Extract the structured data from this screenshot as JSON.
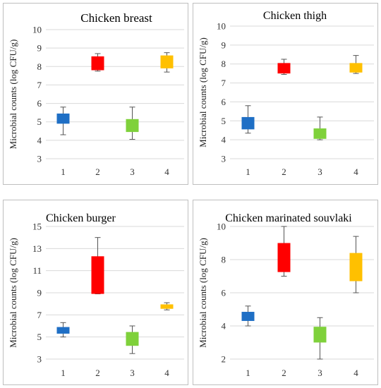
{
  "chart_data": [
    {
      "type": "box",
      "title": "Chicken breast",
      "ylabel": "Microbial counts (log CFU/g)",
      "ylim": [
        3,
        10
      ],
      "yticks": [
        3,
        4,
        5,
        6,
        7,
        8,
        9,
        10
      ],
      "categories": [
        "1",
        "2",
        "3",
        "4"
      ],
      "colors": [
        "#1f6fc5",
        "#ff0000",
        "#7fd13b",
        "#ffc000"
      ],
      "boxes": [
        {
          "min": 4.3,
          "q1": 4.9,
          "q3": 5.45,
          "max": 5.8
        },
        {
          "min": 7.75,
          "q1": 7.8,
          "q3": 8.55,
          "max": 8.7
        },
        {
          "min": 4.05,
          "q1": 4.45,
          "q3": 5.15,
          "max": 5.8
        },
        {
          "min": 7.7,
          "q1": 7.9,
          "q3": 8.6,
          "max": 8.75
        }
      ]
    },
    {
      "type": "box",
      "title": "Chicken thigh",
      "ylabel": "Microbial counts (log CFU/g)",
      "ylim": [
        3,
        10
      ],
      "yticks": [
        3,
        4,
        5,
        6,
        7,
        8,
        9,
        10
      ],
      "categories": [
        "1",
        "2",
        "3",
        "4"
      ],
      "colors": [
        "#1f6fc5",
        "#ff0000",
        "#7fd13b",
        "#ffc000"
      ],
      "boxes": [
        {
          "min": 4.35,
          "q1": 4.55,
          "q3": 5.2,
          "max": 5.8
        },
        {
          "min": 7.45,
          "q1": 7.5,
          "q3": 8.05,
          "max": 8.25
        },
        {
          "min": 4.0,
          "q1": 4.05,
          "q3": 4.6,
          "max": 5.2
        },
        {
          "min": 7.5,
          "q1": 7.55,
          "q3": 8.05,
          "max": 8.45
        }
      ]
    },
    {
      "type": "box",
      "title": "Chicken burger",
      "ylabel": "Microbial counts (log CFU/g)",
      "ylim": [
        3,
        15
      ],
      "yticks": [
        3,
        5,
        7,
        9,
        11,
        13,
        15
      ],
      "categories": [
        "1",
        "2",
        "3",
        "4"
      ],
      "colors": [
        "#1f6fc5",
        "#ff0000",
        "#7fd13b",
        "#ffc000"
      ],
      "boxes": [
        {
          "min": 5.0,
          "q1": 5.3,
          "q3": 5.9,
          "max": 6.3
        },
        {
          "min": 8.9,
          "q1": 8.9,
          "q3": 12.3,
          "max": 14.0
        },
        {
          "min": 3.5,
          "q1": 4.2,
          "q3": 5.45,
          "max": 6.0
        },
        {
          "min": 7.45,
          "q1": 7.55,
          "q3": 7.95,
          "max": 8.1
        }
      ]
    },
    {
      "type": "box",
      "title": "Chicken marinated souvlaki",
      "ylabel": "Microbial counts (log CFU/g)",
      "ylim": [
        2,
        10
      ],
      "yticks": [
        2,
        4,
        6,
        8,
        10
      ],
      "categories": [
        "1",
        "2",
        "3",
        "4"
      ],
      "colors": [
        "#1f6fc5",
        "#ff0000",
        "#7fd13b",
        "#ffc000"
      ],
      "boxes": [
        {
          "min": 4.0,
          "q1": 4.3,
          "q3": 4.85,
          "max": 5.2
        },
        {
          "min": 7.0,
          "q1": 7.25,
          "q3": 9.0,
          "max": 10.0
        },
        {
          "min": 2.0,
          "q1": 3.0,
          "q3": 3.95,
          "max": 4.5
        },
        {
          "min": 6.0,
          "q1": 6.7,
          "q3": 8.4,
          "max": 9.4
        }
      ]
    }
  ]
}
